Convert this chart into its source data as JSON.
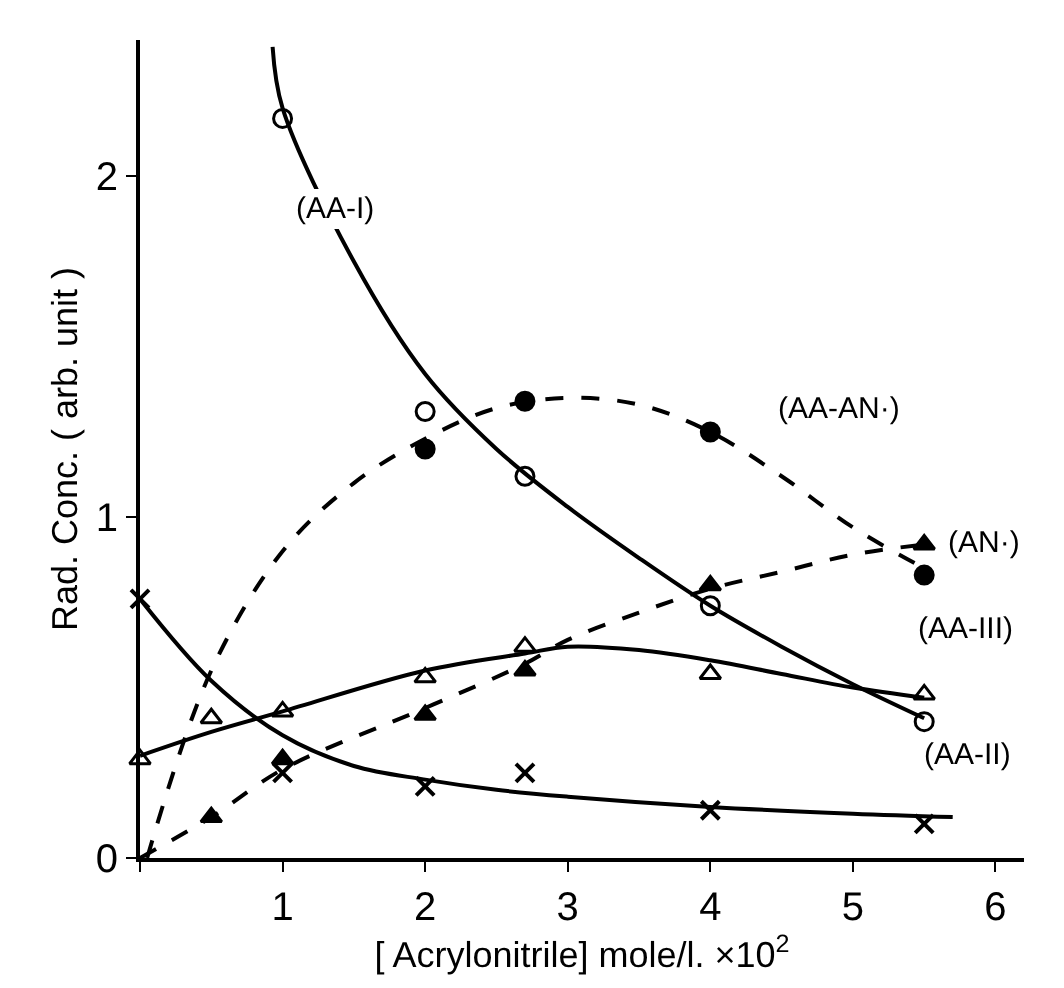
{
  "chart_data": {
    "type": "scatter",
    "xlabel": "[ Acrylonitrile] mole/l. ×10$^{2}$",
    "ylabel": "Rad. Conc. ( arb. unit )",
    "xlim": [
      0,
      6.2
    ],
    "ylim": [
      0,
      2.4
    ],
    "xticks": [
      {
        "value": 0,
        "label": null
      },
      1,
      2,
      3,
      4,
      5,
      6
    ],
    "yticks": [
      0,
      1,
      2
    ],
    "series": [
      {
        "marker": "circle",
        "color": "#ffffff",
        "x": [
          1,
          2,
          2.7,
          4,
          5.5
        ],
        "values": [
          2.17,
          1.31,
          1.12,
          0.74,
          0.4
        ]
      },
      {
        "marker": "circle",
        "color": "#000000",
        "x": [
          2,
          2.7,
          4,
          5.5
        ],
        "values": [
          1.2,
          1.34,
          1.25,
          0.83
        ]
      },
      {
        "marker": "triangle",
        "color": "#000000",
        "x": [
          0.5,
          1,
          2,
          2.7,
          4,
          5.5
        ],
        "values": [
          0.12,
          0.29,
          0.42,
          0.55,
          0.8,
          0.92
        ]
      },
      {
        "marker": "triangle",
        "color": "#ffffff",
        "x": [
          0,
          0.5,
          1,
          2,
          2.7,
          4,
          5.5
        ],
        "values": [
          0.29,
          0.41,
          0.43,
          0.53,
          0.62,
          0.54,
          0.48
        ]
      },
      {
        "marker": "cross",
        "color": "#000000",
        "x": [
          0,
          1,
          2,
          2.7,
          4,
          5.5
        ],
        "values": [
          0.76,
          0.25,
          0.21,
          0.25,
          0.14,
          0.1
        ]
      },
      {
        "type": "line",
        "line_style": "solid",
        "color": "#000000",
        "x": [
          0.93,
          1,
          1.5,
          2,
          2.5,
          3,
          3.5,
          4,
          4.5,
          5,
          5.5
        ],
        "values": [
          2.38,
          2.2,
          1.75,
          1.42,
          1.2,
          1.03,
          0.88,
          0.74,
          0.62,
          0.51,
          0.41
        ]
      },
      {
        "type": "line",
        "line_style": "dashed",
        "color": "#000000",
        "x": [
          0.05,
          0.5,
          1,
          1.5,
          2,
          2.5,
          3,
          3.5,
          4,
          4.5,
          5,
          5.5
        ],
        "values": [
          0,
          0.55,
          0.9,
          1.1,
          1.23,
          1.32,
          1.35,
          1.33,
          1.25,
          1.12,
          0.97,
          0.85
        ]
      },
      {
        "type": "line",
        "line_style": "dashed",
        "color": "#000000",
        "x": [
          0,
          0.5,
          1,
          2,
          2.7,
          3,
          3.5,
          4,
          4.5,
          5,
          5.5
        ],
        "values": [
          0,
          0.12,
          0.26,
          0.44,
          0.57,
          0.64,
          0.72,
          0.79,
          0.84,
          0.89,
          0.92
        ]
      },
      {
        "type": "line",
        "line_style": "solid",
        "color": "#000000",
        "x": [
          0,
          0.5,
          1,
          2,
          2.7,
          3,
          3.5,
          4,
          4.5,
          5,
          5.5
        ],
        "values": [
          0.3,
          0.37,
          0.43,
          0.55,
          0.6,
          0.62,
          0.61,
          0.58,
          0.54,
          0.5,
          0.47
        ]
      },
      {
        "type": "line",
        "line_style": "solid",
        "color": "#000000",
        "x": [
          0,
          0.5,
          1,
          1.5,
          2,
          2.5,
          3,
          4,
          5,
          5.7
        ],
        "values": [
          0.76,
          0.52,
          0.36,
          0.27,
          0.23,
          0.2,
          0.18,
          0.15,
          0.13,
          0.12
        ]
      }
    ],
    "annotations": [
      "(AA-I)",
      "(AA-AN·)",
      "(AN·)",
      "(AA-III)",
      "(AA-II)"
    ]
  }
}
